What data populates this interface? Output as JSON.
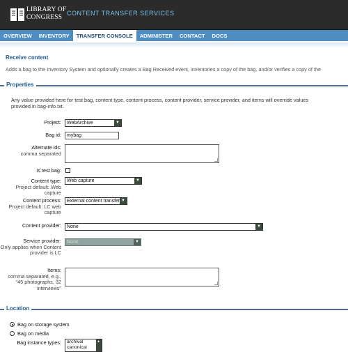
{
  "header": {
    "logo_line1": "LIBRARY OF",
    "logo_line2": "CONGRESS",
    "app_title": "CONTENT TRANSFER SERVICES"
  },
  "nav": {
    "items": [
      "OVERVIEW",
      "INVENTORY",
      "TRANSFER CONSOLE",
      "ADMINISTER",
      "CONTACT",
      "DOCS"
    ],
    "active": "TRANSFER CONSOLE"
  },
  "page": {
    "title": "Receive content",
    "intro": "Adds a bag to the Inventory System and optionally creates a Bag Received event, inventories a copy of the bag, and/or verifies a copy of the"
  },
  "properties": {
    "legend": "Properties",
    "note": "Any value provided here for test bag, content type, content process, content provider, service provider, and items will override values provided in bag-info.txt.",
    "project_label": "Project:",
    "project_value": "WebArchive",
    "bag_id_label": "Bag id:",
    "bag_id_value": "mybag",
    "alt_ids_label": "Alternate ids:",
    "alt_ids_hint": "comma separated",
    "is_test_label": "Is test bag:",
    "content_type_label": "Content type:",
    "content_type_hint": "Project default: Web capture",
    "content_type_value": "Web capture",
    "content_process_label": "Content process:",
    "content_process_hint": "Project default: LC web capture",
    "content_process_value": "External content transfer",
    "content_provider_label": "Content provider:",
    "content_provider_value": "None",
    "service_provider_label": "Service provider:",
    "service_provider_hint": "Only applies when Content provider is LC",
    "service_provider_value": "None",
    "items_label": "Items:",
    "items_hint": "comma separated, e.g., \"45 photographs, 32 interviews\""
  },
  "location": {
    "legend": "Location",
    "option_storage": "Bag on storage system",
    "option_media": "Bag on media",
    "selected": "Bag on storage system",
    "instance_types_label": "Bag instance types:",
    "instance_types": [
      "archival",
      "canonical"
    ]
  },
  "colors": {
    "header_bg": "#2b2b2b",
    "nav_bg": "#4f8cc0",
    "accent": "#1f5a8f",
    "app_title": "#7ac0ea"
  }
}
